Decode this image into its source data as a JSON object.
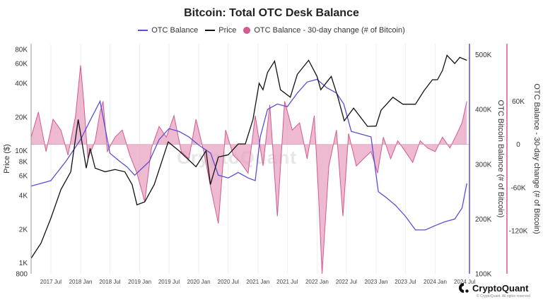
{
  "chart_data": {
    "type": "line",
    "title": "Bitcoin: Total OTC Desk Balance",
    "legend": [
      "OTC Balance",
      "Price",
      "OTC Balance - 30-day change (# of Bitcoin)"
    ],
    "legend_placement": "top-center",
    "colors": {
      "otc_balance": "#5a4fd6",
      "price": "#111111",
      "change": "#d45a8f",
      "change_fill": "#e7a3c1"
    },
    "x_axis": {
      "type": "date",
      "range": [
        "2017-03-01",
        "2024-07-31"
      ],
      "tick_labels": [
        "2017 Jul",
        "2018 Jan",
        "2018 Jul",
        "2019 Jan",
        "2019 Jul",
        "2020 Jan",
        "2020 Jul",
        "2021 Jan",
        "2021 Jul",
        "2022 Jan",
        "2022 Jul",
        "2023 Jan",
        "2023 Jul",
        "2024 Jan",
        "2024 Jul"
      ],
      "tick_dates": [
        "2017-07-01",
        "2018-01-01",
        "2018-07-01",
        "2019-01-01",
        "2019-07-01",
        "2020-01-01",
        "2020-07-01",
        "2021-01-01",
        "2021-07-01",
        "2022-01-01",
        "2022-07-01",
        "2023-01-01",
        "2023-07-01",
        "2024-01-01",
        "2024-07-01"
      ]
    },
    "y_left": {
      "label": "Price ($)",
      "scale": "log",
      "range": [
        800,
        90000
      ],
      "tick_labels": [
        "800",
        "1K",
        "2K",
        "4K",
        "6K",
        "8K",
        "10K",
        "20K",
        "40K",
        "60K",
        "80K"
      ],
      "tick_values": [
        800,
        1000,
        2000,
        4000,
        6000,
        8000,
        10000,
        20000,
        40000,
        60000,
        80000
      ]
    },
    "y_right1": {
      "label": "OTC Bitcoin Balance (# of Bitcoin)",
      "range": [
        100000,
        520000
      ],
      "tick_labels": [
        "100K",
        "200K",
        "300K",
        "400K",
        "500K"
      ],
      "tick_values": [
        100000,
        200000,
        300000,
        400000,
        500000
      ]
    },
    "y_right2": {
      "label": "OTC Balance - 30-day change (# of Bitcoin)",
      "range": [
        -180000,
        140000
      ],
      "tick_labels": [
        "-120K",
        "-60K",
        "0",
        "60K"
      ],
      "tick_values": [
        -120000,
        -60000,
        0,
        60000
      ]
    },
    "series": [
      {
        "name": "Price",
        "axis": "left",
        "x": [
          "2017-03-01",
          "2017-05-01",
          "2017-07-01",
          "2017-09-01",
          "2017-11-01",
          "2017-12-17",
          "2018-02-05",
          "2018-03-01",
          "2018-04-01",
          "2018-06-01",
          "2018-08-01",
          "2018-10-01",
          "2018-11-15",
          "2018-12-15",
          "2019-02-01",
          "2019-04-01",
          "2019-06-26",
          "2019-09-01",
          "2019-12-15",
          "2020-02-15",
          "2020-03-13",
          "2020-05-01",
          "2020-07-01",
          "2020-09-01",
          "2020-10-15",
          "2020-12-01",
          "2021-01-08",
          "2021-02-01",
          "2021-03-01",
          "2021-04-14",
          "2021-05-20",
          "2021-07-20",
          "2021-09-01",
          "2021-11-10",
          "2022-01-01",
          "2022-01-24",
          "2022-03-30",
          "2022-05-10",
          "2022-06-18",
          "2022-08-15",
          "2022-11-09",
          "2023-01-01",
          "2023-02-01",
          "2023-04-15",
          "2023-06-15",
          "2023-09-01",
          "2023-10-25",
          "2023-12-15",
          "2024-01-15",
          "2024-02-15",
          "2024-03-14",
          "2024-05-01",
          "2024-06-01",
          "2024-07-15"
        ],
        "values": [
          1100,
          1500,
          2500,
          4500,
          6500,
          19000,
          7000,
          10500,
          7000,
          6500,
          6800,
          6500,
          5000,
          3300,
          3500,
          5000,
          12000,
          10000,
          7200,
          10000,
          5000,
          8800,
          9200,
          11500,
          11500,
          19000,
          40000,
          35000,
          50000,
          63000,
          35000,
          30000,
          48000,
          64000,
          46000,
          35000,
          46000,
          30000,
          18500,
          24000,
          16500,
          16600,
          23000,
          30000,
          26000,
          26000,
          34500,
          43000,
          43000,
          52000,
          71000,
          60000,
          68000,
          64000
        ]
      },
      {
        "name": "OTC Balance",
        "axis": "right1",
        "x": [
          "2017-03-01",
          "2017-05-01",
          "2017-07-01",
          "2017-10-01",
          "2018-01-01",
          "2018-03-01",
          "2018-05-01",
          "2018-07-01",
          "2018-09-01",
          "2018-10-15",
          "2018-12-01",
          "2019-03-01",
          "2019-05-01",
          "2019-07-01",
          "2019-09-01",
          "2019-11-01",
          "2020-01-01",
          "2020-03-15",
          "2020-05-01",
          "2020-07-01",
          "2020-09-01",
          "2020-11-01",
          "2020-12-15",
          "2021-01-15",
          "2021-03-01",
          "2021-05-01",
          "2021-07-01",
          "2021-09-01",
          "2021-11-01",
          "2022-01-01",
          "2022-03-01",
          "2022-05-01",
          "2022-06-15",
          "2022-08-01",
          "2022-10-01",
          "2022-12-01",
          "2023-01-15",
          "2023-03-01",
          "2023-05-01",
          "2023-07-01",
          "2023-09-01",
          "2023-11-01",
          "2024-01-01",
          "2024-03-01",
          "2024-05-01",
          "2024-06-15",
          "2024-07-15"
        ],
        "values": [
          260000,
          265000,
          270000,
          305000,
          345000,
          380000,
          415000,
          320000,
          305000,
          295000,
          280000,
          305000,
          345000,
          365000,
          360000,
          350000,
          335000,
          320000,
          280000,
          275000,
          285000,
          275000,
          270000,
          350000,
          400000,
          410000,
          405000,
          430000,
          450000,
          455000,
          440000,
          430000,
          410000,
          360000,
          355000,
          350000,
          250000,
          240000,
          225000,
          205000,
          180000,
          180000,
          188000,
          195000,
          200000,
          220000,
          265000
        ]
      },
      {
        "name": "OTC Balance - 30-day change (# of Bitcoin)",
        "axis": "right2",
        "x": [
          "2017-03-01",
          "2017-04-15",
          "2017-06-01",
          "2017-07-15",
          "2017-09-01",
          "2017-10-15",
          "2017-12-01",
          "2018-01-01",
          "2018-01-20",
          "2018-02-15",
          "2018-04-01",
          "2018-05-01",
          "2018-05-20",
          "2018-06-15",
          "2018-08-01",
          "2018-09-15",
          "2018-11-01",
          "2018-12-15",
          "2019-02-01",
          "2019-03-15",
          "2019-05-01",
          "2019-06-15",
          "2019-08-01",
          "2019-09-15",
          "2019-11-01",
          "2019-12-15",
          "2020-02-01",
          "2020-03-15",
          "2020-05-01",
          "2020-06-15",
          "2020-08-01",
          "2020-09-15",
          "2020-11-01",
          "2020-12-15",
          "2021-02-01",
          "2021-03-15",
          "2021-05-01",
          "2021-06-15",
          "2021-08-01",
          "2021-09-15",
          "2021-11-01",
          "2021-12-15",
          "2022-01-10",
          "2022-02-01",
          "2022-03-15",
          "2022-05-01",
          "2022-06-10",
          "2022-07-15",
          "2022-09-01",
          "2022-10-15",
          "2022-12-01",
          "2023-01-10",
          "2023-02-15",
          "2023-04-01",
          "2023-05-15",
          "2023-07-01",
          "2023-08-15",
          "2023-10-01",
          "2023-11-15",
          "2024-01-01",
          "2024-02-15",
          "2024-04-01",
          "2024-05-15",
          "2024-06-15",
          "2024-07-15"
        ],
        "values": [
          10000,
          45000,
          -10000,
          35000,
          20000,
          -15000,
          40000,
          110000,
          60000,
          -20000,
          5000,
          45000,
          60000,
          -10000,
          10000,
          20000,
          -15000,
          -40000,
          -80000,
          -5000,
          25000,
          10000,
          40000,
          -10000,
          -20000,
          35000,
          -10000,
          -60000,
          -110000,
          20000,
          -15000,
          -25000,
          -40000,
          40000,
          -30000,
          55000,
          -100000,
          60000,
          20000,
          30000,
          -20000,
          40000,
          -70000,
          -180000,
          -30000,
          20000,
          -100000,
          15000,
          -30000,
          -20000,
          -10000,
          -40000,
          10000,
          -20000,
          5000,
          -10000,
          -25000,
          5000,
          -5000,
          -10000,
          10000,
          -5000,
          15000,
          30000,
          60000
        ]
      }
    ]
  },
  "brand": {
    "name": "CryptoQuant",
    "sub": "© CryptoQuant. All rights reserved",
    "watermark": "CryptoQuant"
  }
}
